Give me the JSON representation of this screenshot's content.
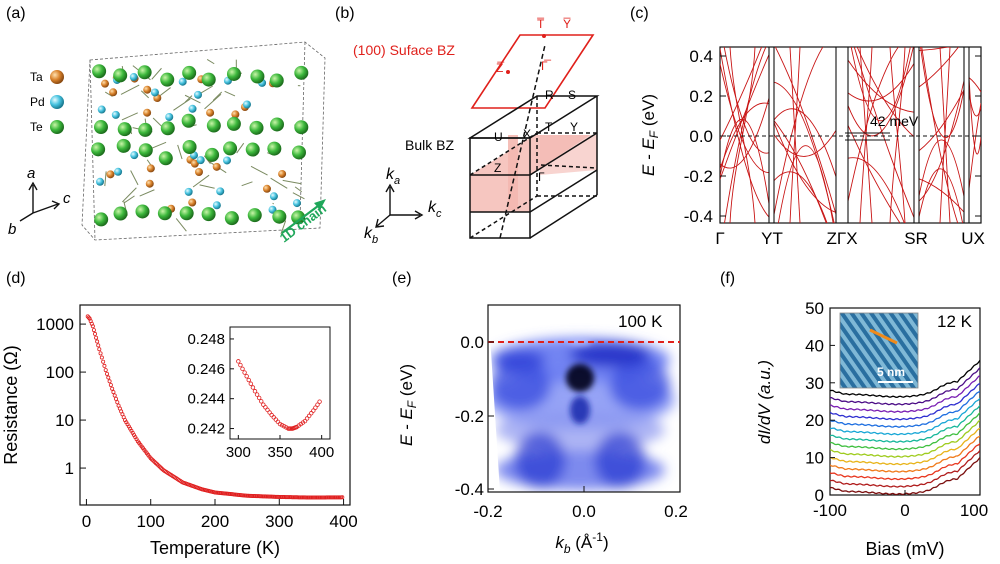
{
  "panels": {
    "a": {
      "label": "(a)",
      "legend": [
        {
          "name": "Ta",
          "color": "#d9822b"
        },
        {
          "name": "Pd",
          "color": "#45c2df"
        },
        {
          "name": "Te",
          "color": "#3cb83c"
        }
      ],
      "axes": {
        "a": "a",
        "b": "b",
        "c": "c"
      },
      "chain_label": "1D chain",
      "chain_color": "#1fa75a"
    },
    "b": {
      "label": "(b)",
      "surface_label": "(100) Suface BZ",
      "surface_color": "#e0201b",
      "bulk_label": "Bulk BZ",
      "surface_points": [
        "T̅",
        "Y̅",
        "Z̅",
        "Γ̅"
      ],
      "bulk_points": [
        "R",
        "S",
        "U",
        "X",
        "T",
        "Y",
        "Z",
        "Γ"
      ],
      "k_axes": [
        "k",
        "a",
        "k",
        "c",
        "k",
        "b"
      ]
    },
    "c": {
      "label": "(c)",
      "ylabel_pre": "E - E",
      "ylabel_sub": "F",
      "ylabel_post": " (eV)",
      "yticks": [
        "0.4",
        "0.2",
        "0.0",
        "-0.2",
        "-0.4"
      ],
      "xticks": [
        "Γ",
        "YT",
        "ZΓX",
        "SR",
        "UX"
      ],
      "gap_annotation": "42 meV",
      "band_color": "#c81414"
    },
    "d": {
      "label": "(d)",
      "xlabel": "Temperature (K)",
      "ylabel": "Resistance (Ω)",
      "inset_yticks": [
        "0.248",
        "0.246",
        "0.244",
        "0.242"
      ],
      "inset_xticks": [
        "300",
        "350",
        "400"
      ],
      "color": "#e02020"
    },
    "e": {
      "label": "(e)",
      "temperature": "100 K",
      "ylabel_pre": "E - E",
      "ylabel_sub": "F",
      "ylabel_post": " (eV)",
      "xlabel_pre": "k",
      "xlabel_sub": "b",
      "xlabel_post": " (Å",
      "xlabel_sup": "-1",
      "xlabel_end": ")",
      "yticks": [
        "0.0",
        "-0.2",
        "-0.4"
      ],
      "xticks": [
        "-0.2",
        "0.0",
        "0.2"
      ]
    },
    "f": {
      "label": "(f)",
      "temperature": "12 K",
      "ylabel": "dI/dV (a.u.)",
      "xlabel": "Bias (mV)",
      "yticks": [
        "50",
        "40",
        "30",
        "20",
        "10",
        "0"
      ],
      "xticks": [
        "-100",
        "0",
        "100"
      ],
      "scale_bar": "5 nm",
      "curve_colors": [
        "#000000",
        "#4b0c86",
        "#7a1fb3",
        "#2f2fd0",
        "#1f6fe0",
        "#19a7d6",
        "#17b79a",
        "#3fbf3f",
        "#9fcc1f",
        "#e8b41a",
        "#f07a1a",
        "#e8361e",
        "#b01d1d",
        "#7a0e0e"
      ]
    }
  },
  "chart_data": [
    {
      "panel": "d",
      "type": "scatter",
      "xlabel": "Temperature (K)",
      "ylabel": "Resistance (Ω)",
      "yscale": "log",
      "xlim": [
        -10,
        410
      ],
      "ylim": [
        0.17,
        2500
      ],
      "xticks": [
        0,
        100,
        200,
        300,
        400
      ],
      "yticks": [
        1,
        10,
        100,
        1000
      ],
      "series": [
        {
          "x": [
            2,
            5,
            10,
            15,
            20,
            30,
            40,
            50,
            60,
            80,
            100,
            120,
            150,
            180,
            200,
            250,
            300,
            350,
            400
          ],
          "y": [
            1450,
            1300,
            900,
            520,
            300,
            110,
            45,
            20,
            10,
            3.6,
            1.6,
            0.9,
            0.5,
            0.36,
            0.31,
            0.265,
            0.25,
            0.243,
            0.246
          ]
        }
      ]
    },
    {
      "panel": "d-inset",
      "type": "scatter",
      "xlim": [
        290,
        410
      ],
      "ylim": [
        0.2413,
        0.2488
      ],
      "xticks": [
        300,
        350,
        400
      ],
      "yticks": [
        0.242,
        0.244,
        0.246,
        0.248
      ],
      "series": [
        {
          "x": [
            300,
            310,
            320,
            330,
            340,
            350,
            360,
            365,
            370,
            380,
            390,
            400
          ],
          "y": [
            0.2465,
            0.2455,
            0.2445,
            0.2436,
            0.2429,
            0.2423,
            0.242,
            0.242,
            0.2421,
            0.2425,
            0.2432,
            0.244
          ]
        }
      ]
    },
    {
      "panel": "c",
      "type": "line",
      "ylabel": "E - EF (eV)",
      "ylim": [
        -0.5,
        0.5
      ],
      "yticks": [
        0.4,
        0.2,
        0.0,
        -0.2,
        -0.4
      ],
      "xticks": [
        "Γ",
        "YT",
        "ZΓX",
        "SR",
        "UX"
      ]
    },
    {
      "panel": "f",
      "type": "line",
      "xlabel": "Bias (mV)",
      "ylabel": "dI/dV (a.u.)",
      "xlim": [
        -100,
        100
      ],
      "ylim": [
        0,
        50
      ],
      "xticks": [
        -100,
        0,
        100
      ],
      "yticks": [
        0,
        10,
        20,
        30,
        40,
        50
      ],
      "offsets": [
        27,
        25,
        23,
        21,
        19,
        17,
        15,
        13,
        11,
        9,
        7,
        5,
        3,
        1
      ],
      "series_count": 14
    }
  ]
}
